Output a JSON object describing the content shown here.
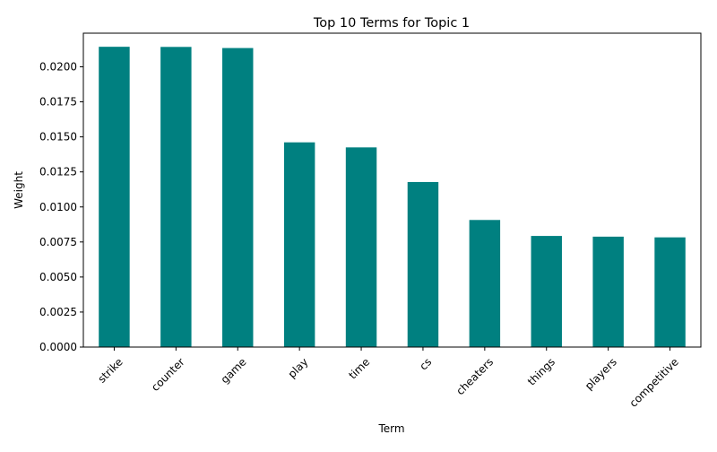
{
  "chart_data": {
    "type": "bar",
    "title": "Top 10 Terms for Topic 1",
    "xlabel": "Term",
    "ylabel": "Weight",
    "categories": [
      "strike",
      "counter",
      "game",
      "play",
      "time",
      "cs",
      "cheaters",
      "things",
      "players",
      "competitive"
    ],
    "values": [
      0.02143,
      0.02142,
      0.02134,
      0.01461,
      0.01425,
      0.01178,
      0.00907,
      0.00793,
      0.00788,
      0.00783
    ],
    "ylim": [
      0,
      0.0224
    ],
    "yticks": [
      "0.0000",
      "0.0025",
      "0.0050",
      "0.0075",
      "0.0100",
      "0.0125",
      "0.0150",
      "0.0175",
      "0.0200"
    ],
    "bar_color": "#008080",
    "grid": false,
    "legend": "none"
  }
}
